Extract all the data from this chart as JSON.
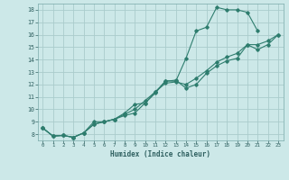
{
  "xlabel": "Humidex (Indice chaleur)",
  "bg_color": "#cce8e8",
  "grid_color": "#aacccc",
  "line_color": "#2e7d6e",
  "xlim": [
    -0.5,
    23.5
  ],
  "ylim": [
    7.5,
    18.5
  ],
  "xticks": [
    0,
    1,
    2,
    3,
    4,
    5,
    6,
    7,
    8,
    9,
    10,
    11,
    12,
    13,
    14,
    15,
    16,
    17,
    18,
    19,
    20,
    21,
    22,
    23
  ],
  "yticks": [
    8,
    9,
    10,
    11,
    12,
    13,
    14,
    15,
    16,
    17,
    18
  ],
  "line1_x": [
    0,
    1,
    2,
    3,
    4,
    5,
    6,
    7,
    8,
    9,
    10,
    11,
    12,
    13,
    14,
    15,
    16,
    17,
    18,
    19,
    20,
    21
  ],
  "line1_y": [
    8.5,
    7.85,
    7.9,
    7.75,
    8.1,
    9.0,
    9.0,
    9.2,
    9.7,
    10.4,
    10.5,
    11.3,
    12.3,
    12.25,
    14.1,
    16.3,
    16.6,
    18.2,
    18.0,
    18.0,
    17.8,
    16.3
  ],
  "line2_x": [
    0,
    1,
    2,
    3,
    4,
    5,
    6,
    7,
    8,
    9,
    10,
    11,
    12,
    13,
    14,
    15,
    16,
    17,
    18,
    19,
    20,
    21,
    22,
    23
  ],
  "line2_y": [
    8.5,
    7.85,
    7.9,
    7.75,
    8.1,
    8.8,
    9.0,
    9.2,
    9.5,
    9.7,
    10.5,
    11.4,
    12.25,
    12.35,
    11.7,
    12.0,
    12.9,
    13.5,
    13.9,
    14.1,
    15.2,
    14.8,
    15.2,
    16.0
  ],
  "line3_x": [
    0,
    1,
    2,
    3,
    4,
    5,
    6,
    7,
    8,
    9,
    10,
    11,
    12,
    13,
    14,
    15,
    16,
    17,
    18,
    19,
    20,
    21,
    22,
    23
  ],
  "line3_y": [
    8.5,
    7.85,
    7.9,
    7.75,
    8.1,
    8.8,
    9.0,
    9.2,
    9.6,
    10.0,
    10.7,
    11.4,
    12.1,
    12.2,
    12.0,
    12.5,
    13.1,
    13.8,
    14.2,
    14.5,
    15.2,
    15.2,
    15.5,
    16.0
  ]
}
